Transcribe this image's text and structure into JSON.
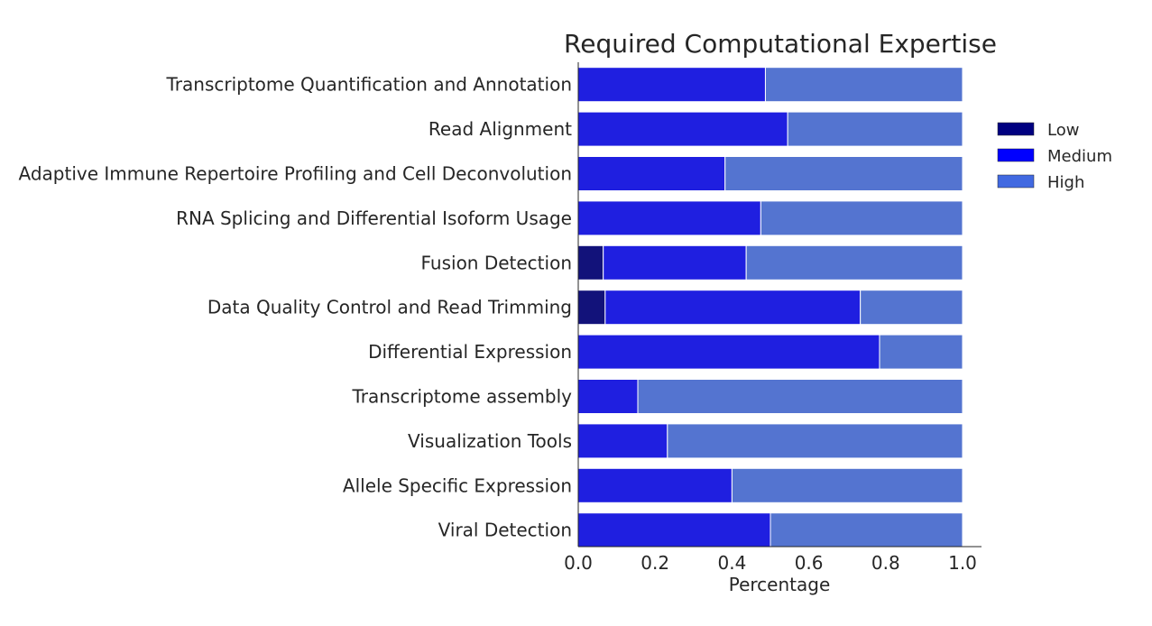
{
  "chart_data": {
    "type": "bar",
    "orientation": "horizontal",
    "stacked": true,
    "title": "Required Computational Expertise",
    "xlabel": "Percentage",
    "ylabel": "",
    "xlim": [
      0,
      1.0
    ],
    "xticks": [
      "0.0",
      "0.2",
      "0.4",
      "0.6",
      "0.8",
      "1.0"
    ],
    "grid": false,
    "legend_position": "right",
    "categories": [
      "Transcriptome Quantification and Annotation",
      "Read Alignment",
      "Adaptive Immune Repertoire Profiling and Cell Deconvolution",
      "RNA Splicing and Differential Isoform Usage",
      "Fusion Detection",
      "Data Quality Control and Read Trimming",
      "Differential Expression",
      "Transcriptome assembly",
      "Visualization Tools",
      "Allele Specific Expression",
      "Viral Detection"
    ],
    "series": [
      {
        "name": "Low",
        "color": "#12127a",
        "legend_color": "#000080",
        "values": [
          0,
          0,
          0,
          0,
          0.065,
          0.07,
          0,
          0,
          0,
          0,
          0
        ]
      },
      {
        "name": "Medium",
        "color": "#1f1fe0",
        "legend_color": "#0000ff",
        "values": [
          0.487,
          0.545,
          0.382,
          0.475,
          0.372,
          0.664,
          0.784,
          0.155,
          0.232,
          0.4,
          0.5
        ]
      },
      {
        "name": "High",
        "color": "#5474d0",
        "legend_color": "#4169e1",
        "values": [
          0.513,
          0.455,
          0.618,
          0.525,
          0.563,
          0.266,
          0.216,
          0.845,
          0.768,
          0.6,
          0.5
        ]
      }
    ]
  }
}
